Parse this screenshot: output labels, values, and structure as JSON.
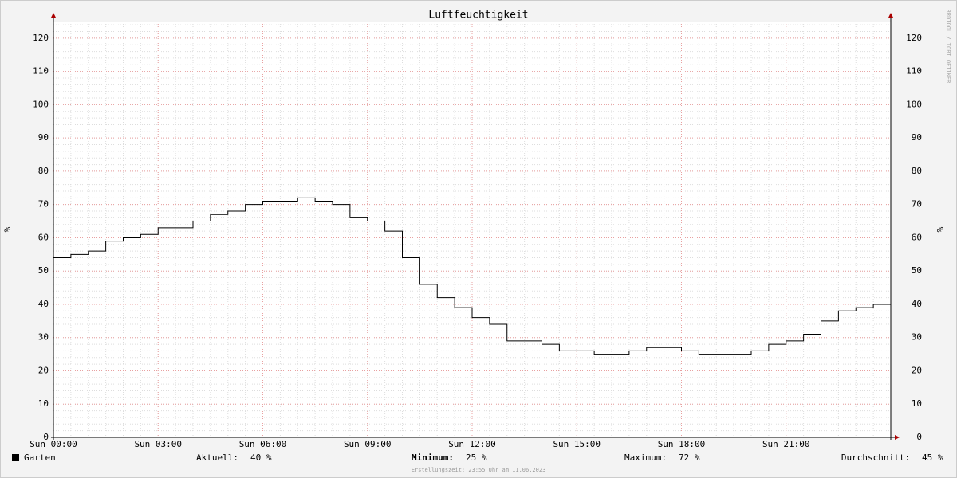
{
  "chart_data": {
    "type": "line",
    "title": "Luftfeuchtigkeit",
    "ylabel": "%",
    "watermark": "RRDTOOL / TOBI OETIKER",
    "x": [
      0,
      0.5,
      1,
      1.5,
      2,
      2.5,
      3,
      3.5,
      4,
      4.5,
      5,
      5.5,
      6,
      6.5,
      7,
      7.5,
      8,
      8.5,
      9,
      9.5,
      10,
      10.5,
      11,
      11.5,
      12,
      12.5,
      13,
      13.5,
      14,
      14.5,
      15,
      15.5,
      16,
      16.5,
      17,
      17.5,
      18,
      18.5,
      19,
      19.5,
      20,
      20.5,
      21,
      21.5,
      22,
      22.5,
      23,
      23.5,
      24
    ],
    "series": [
      {
        "name": "Garten",
        "color": "#000000",
        "values": [
          54,
          55,
          56,
          59,
          60,
          61,
          63,
          63,
          65,
          67,
          68,
          70,
          71,
          71,
          72,
          71,
          70,
          66,
          65,
          62,
          54,
          46,
          42,
          39,
          36,
          34,
          29,
          29,
          28,
          26,
          26,
          25,
          25,
          26,
          27,
          27,
          26,
          25,
          25,
          25,
          26,
          28,
          29,
          31,
          35,
          38,
          39,
          40,
          40
        ]
      }
    ],
    "xlim": [
      0,
      24
    ],
    "xticks": [
      {
        "value": 0,
        "label": "Sun 00:00"
      },
      {
        "value": 3,
        "label": "Sun 03:00"
      },
      {
        "value": 6,
        "label": "Sun 06:00"
      },
      {
        "value": 9,
        "label": "Sun 09:00"
      },
      {
        "value": 12,
        "label": "Sun 12:00"
      },
      {
        "value": 15,
        "label": "Sun 15:00"
      },
      {
        "value": 18,
        "label": "Sun 18:00"
      },
      {
        "value": 21,
        "label": "Sun 21:00"
      }
    ],
    "ylim": [
      0,
      125
    ],
    "yticks": [
      0,
      10,
      20,
      30,
      40,
      50,
      60,
      70,
      80,
      90,
      100,
      110,
      120
    ],
    "grid": true,
    "stats": [
      {
        "label": "Aktuell:",
        "value": "40 %"
      },
      {
        "label": "Minimum:",
        "value": "25 %"
      },
      {
        "label": "Maximum:",
        "value": "72 %"
      },
      {
        "label": "Durchschnitt:",
        "value": "45 %"
      }
    ],
    "footer": "Erstellungszeit: 23:55 Uhr am 11.06.2023"
  }
}
